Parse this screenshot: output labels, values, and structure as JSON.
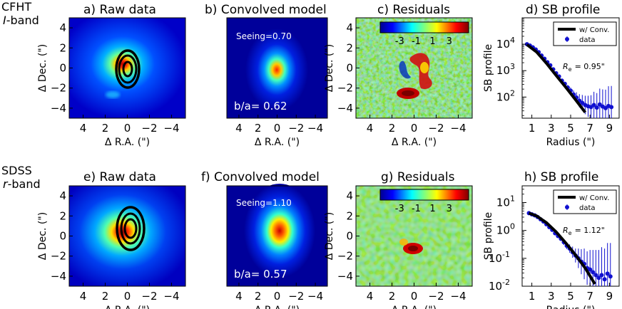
{
  "rows": [
    {
      "survey": "CFHT",
      "band": "I-band",
      "band_symbol": "I",
      "band_suffix": "-band",
      "panels": {
        "raw": {
          "title": "a) Raw data"
        },
        "model": {
          "title": "b) Convolved model",
          "seeing_label": "Seeing=0.70",
          "ba_label": "b/a=  0.62"
        },
        "resid": {
          "title": "c) Residuals",
          "colorbar_ticks": [
            "-3",
            "-1",
            "1",
            "3"
          ]
        },
        "sb": {
          "title": "d) SB profile",
          "legend_line": "w/ Conv.",
          "legend_data": "data",
          "re_label": "= 0.95\""
        }
      }
    },
    {
      "survey": "SDSS",
      "band": "r-band",
      "band_symbol": "r",
      "band_suffix": "-band",
      "panels": {
        "raw": {
          "title": "e) Raw data"
        },
        "model": {
          "title": "f) Convolved model",
          "seeing_label": "Seeing=1.10",
          "ba_label": "b/a=  0.57"
        },
        "resid": {
          "title": "g) Residuals",
          "colorbar_ticks": [
            "-3",
            "-1",
            "1",
            "3"
          ]
        },
        "sb": {
          "title": "h) SB profile",
          "legend_line": "w/ Conv.",
          "legend_data": "data",
          "re_label": "= 1.12\""
        }
      }
    }
  ],
  "image_axes": {
    "xlabel": "Δ R.A. (\")",
    "ylabel": "Δ Dec. (\")",
    "x_ticks": [
      "4",
      "2",
      "0",
      "−2",
      "−4"
    ],
    "y_ticks": [
      "4",
      "2",
      "0",
      "−2",
      "−4"
    ]
  },
  "chart_data": [
    {
      "type": "scatter",
      "title": "d) SB profile",
      "xlabel": "Radius (\")",
      "ylabel": "SB profile",
      "yscale": "log",
      "xlim": [
        0,
        10
      ],
      "ylim_log10": [
        1.2,
        5
      ],
      "x_ticks": [
        "1",
        "3",
        "5",
        "7",
        "9"
      ],
      "y_ticks": [
        "10^4",
        "10^3",
        "10^2"
      ],
      "series": [
        {
          "name": "w/ Conv.",
          "style": "line",
          "x": [
            0.5,
            1.5,
            2.5,
            3.5,
            4.5,
            5.5,
            6.5
          ],
          "log10_y": [
            3.98,
            3.7,
            3.28,
            2.82,
            2.37,
            1.9,
            1.42
          ]
        },
        {
          "name": "data",
          "style": "points",
          "x": [
            0.5,
            0.8,
            1.1,
            1.4,
            1.7,
            2.0,
            2.3,
            2.6,
            2.9,
            3.2,
            3.5,
            3.8,
            4.1,
            4.4,
            4.7,
            5.0,
            5.3,
            5.6,
            5.9,
            6.2,
            6.5,
            6.8,
            7.1,
            7.4,
            7.7,
            8.0,
            8.3,
            8.6,
            8.9,
            9.2
          ],
          "log10_y": [
            4.0,
            3.95,
            3.88,
            3.8,
            3.7,
            3.57,
            3.45,
            3.32,
            3.2,
            3.05,
            2.9,
            2.78,
            2.62,
            2.5,
            2.36,
            2.24,
            2.1,
            1.98,
            1.86,
            1.78,
            1.7,
            1.65,
            1.62,
            1.7,
            1.6,
            1.72,
            1.64,
            1.58,
            1.66,
            1.62
          ],
          "log10_err": [
            0.02,
            0.02,
            0.02,
            0.02,
            0.03,
            0.03,
            0.03,
            0.04,
            0.04,
            0.05,
            0.05,
            0.06,
            0.06,
            0.08,
            0.1,
            0.12,
            0.15,
            0.2,
            0.25,
            0.3,
            0.35,
            0.4,
            0.45,
            0.5,
            0.55,
            0.6,
            0.65,
            0.7,
            0.75,
            0.8
          ]
        }
      ]
    },
    {
      "type": "scatter",
      "title": "h) SB profile",
      "xlabel": "Radius (\")",
      "ylabel": "SB profile",
      "yscale": "log",
      "xlim": [
        0,
        10
      ],
      "ylim_log10": [
        -2,
        1.6
      ],
      "x_ticks": [
        "1",
        "3",
        "5",
        "7",
        "9"
      ],
      "y_ticks": [
        "10^1",
        "10^0",
        "10^-1",
        "10^-2"
      ],
      "series": [
        {
          "name": "w/ Conv.",
          "style": "line",
          "x": [
            0.7,
            1.5,
            2.5,
            3.5,
            4.5,
            5.5,
            6.5,
            7.5
          ],
          "log10_y": [
            0.62,
            0.52,
            0.28,
            -0.05,
            -0.45,
            -0.88,
            -1.35,
            -1.92
          ]
        },
        {
          "name": "data",
          "style": "points",
          "x": [
            0.7,
            1.0,
            1.3,
            1.6,
            1.9,
            2.2,
            2.5,
            2.8,
            3.1,
            3.4,
            3.7,
            4.0,
            4.3,
            4.6,
            4.9,
            5.2,
            5.5,
            5.8,
            6.1,
            6.4,
            6.7,
            7.0,
            7.3,
            7.6,
            7.9,
            8.2,
            8.5,
            8.8,
            9.1
          ],
          "log10_y": [
            0.62,
            0.58,
            0.54,
            0.48,
            0.4,
            0.32,
            0.22,
            0.12,
            0.02,
            -0.1,
            -0.2,
            -0.3,
            -0.42,
            -0.55,
            -0.65,
            -0.78,
            -0.9,
            -1.0,
            -1.12,
            -1.2,
            -1.35,
            -1.4,
            -1.5,
            -1.6,
            -1.7,
            -1.6,
            -1.75,
            -1.55,
            -1.65
          ],
          "log10_err": [
            0.02,
            0.02,
            0.03,
            0.03,
            0.03,
            0.04,
            0.04,
            0.05,
            0.05,
            0.06,
            0.07,
            0.08,
            0.1,
            0.12,
            0.15,
            0.2,
            0.25,
            0.35,
            0.45,
            0.55,
            0.6,
            0.7,
            0.8,
            0.9,
            1.0,
            1.0,
            1.1,
            1.1,
            1.2
          ]
        }
      ]
    }
  ]
}
